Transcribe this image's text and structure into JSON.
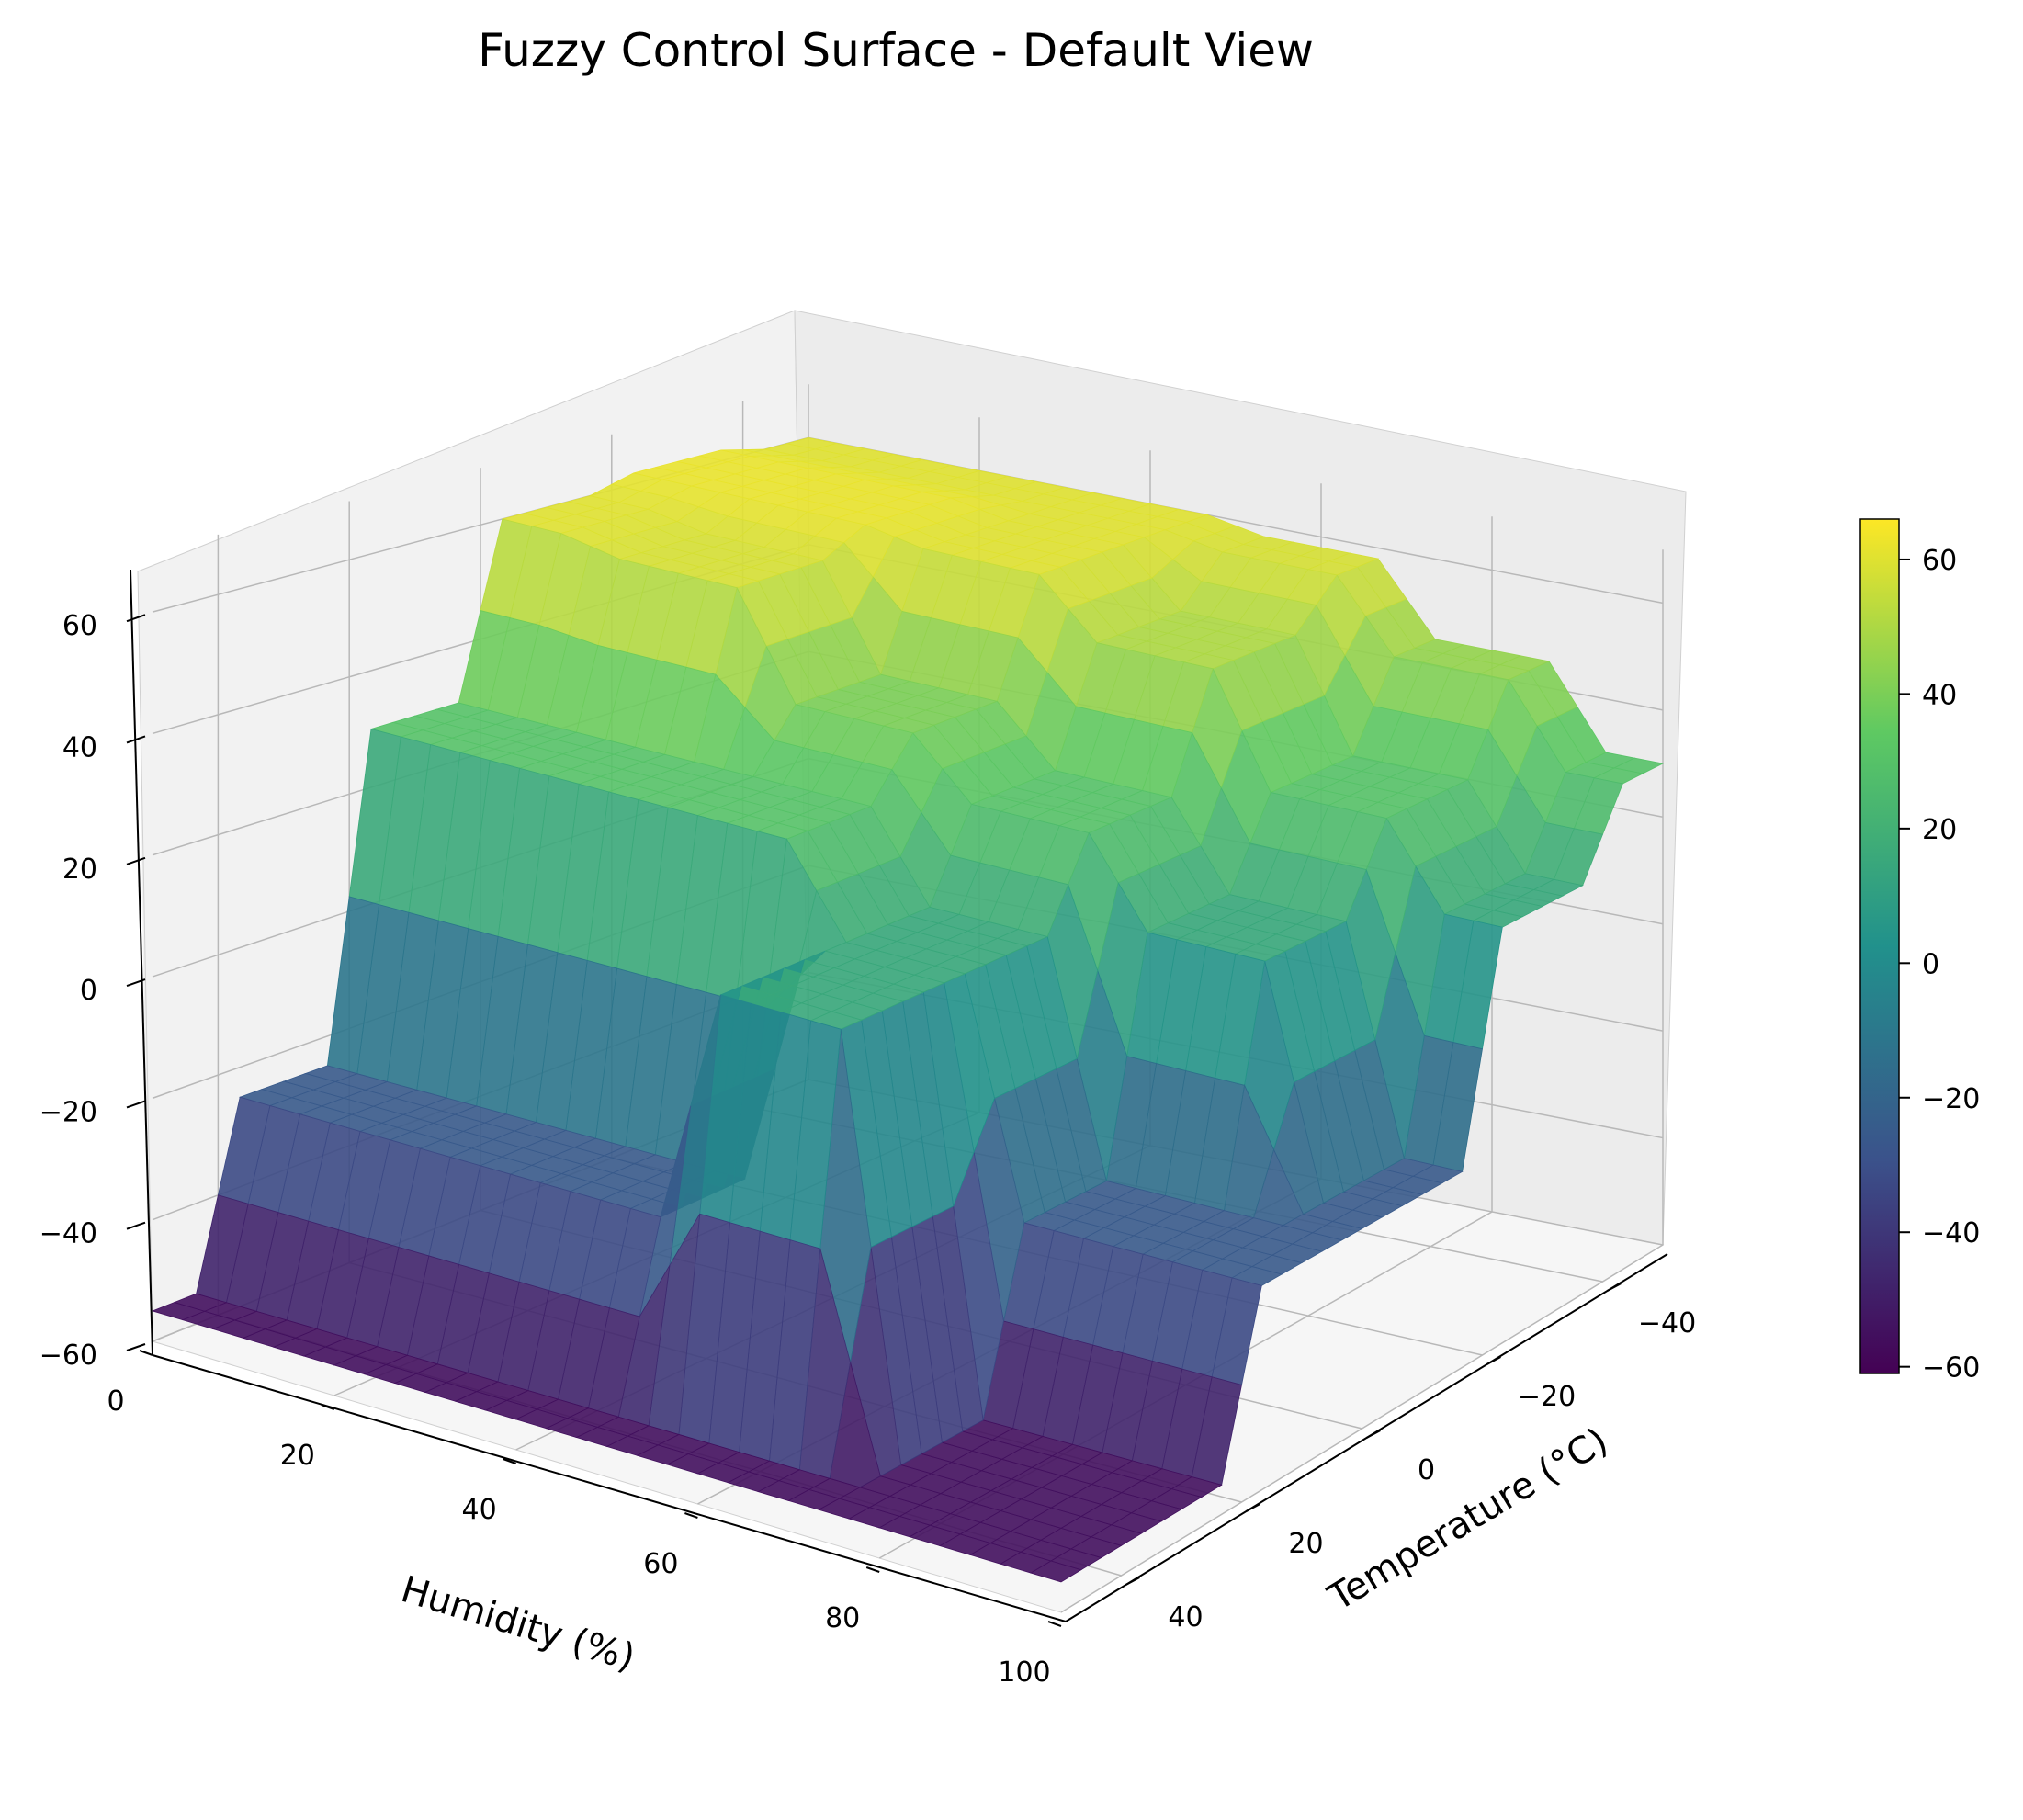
{
  "chart_data": {
    "type": "surface3d",
    "title": "Fuzzy Control Surface - Default View",
    "xlabel": "Humidity (%)",
    "ylabel": "Temperature (°C)",
    "zlabel": "",
    "x_ticks": [
      "0",
      "20",
      "40",
      "60",
      "80",
      "100"
    ],
    "y_ticks": [
      "−40",
      "−20",
      "0",
      "20",
      "40"
    ],
    "z_ticks": [
      "−60",
      "−40",
      "−20",
      "0",
      "20",
      "40",
      "60"
    ],
    "colorbar_ticks": [
      "−60",
      "−40",
      "−20",
      "0",
      "20",
      "40",
      "60"
    ],
    "xlim": [
      0,
      100
    ],
    "ylim": [
      -50,
      50
    ],
    "zlim": [
      -60,
      70
    ],
    "colorbar_range": [
      -61,
      66
    ],
    "colormap": [
      "#440154",
      "#3b528b",
      "#21918c",
      "#5ec962",
      "#fde725"
    ],
    "grid": true,
    "levels": {
      "low": -55,
      "mid_low": -25,
      "mid": 15,
      "mid_high": 30,
      "high": 60
    },
    "surface": {
      "humidity": [
        0,
        20,
        40,
        60,
        80,
        100
      ],
      "temperature": [
        -50,
        -30,
        -10,
        10,
        30,
        50
      ],
      "z": [
        [
          60,
          60,
          60,
          58,
          45,
          30
        ],
        [
          62,
          62,
          60,
          50,
          30,
          15
        ],
        [
          60,
          58,
          40,
          30,
          15,
          -25
        ],
        [
          30,
          30,
          30,
          15,
          -25,
          -25
        ],
        [
          -25,
          -25,
          -25,
          15,
          -55,
          -55
        ],
        [
          -55,
          -55,
          -55,
          -55,
          -55,
          -55
        ]
      ]
    }
  }
}
